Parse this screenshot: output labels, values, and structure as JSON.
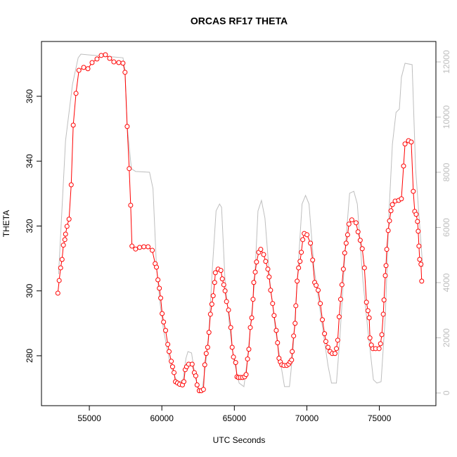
{
  "chart_data": {
    "type": "line",
    "title": "ORCAS RF17 THETA",
    "xlabel": "UTC Seconds",
    "ylabel": "THETA",
    "xlim": [
      51700,
      78900
    ],
    "xticks": [
      55000,
      60000,
      65000,
      70000,
      75000
    ],
    "ylim": [
      264.6,
      376.9
    ],
    "yticks": [
      280,
      300,
      320,
      340,
      360
    ],
    "y2lim": [
      -460,
      12740
    ],
    "y2ticks": [
      0,
      2000,
      4000,
      6000,
      8000,
      10000,
      12000
    ],
    "series": [
      {
        "color": "#bebebe",
        "axis": "y2",
        "markers": false,
        "x": [
          52880,
          53360,
          53840,
          54230,
          54420,
          55050,
          56250,
          57320,
          57460,
          57610,
          57900,
          58190,
          59150,
          59390,
          59630,
          59870,
          60120,
          60600,
          61080,
          61470,
          61660,
          61800,
          62050,
          62290,
          62530,
          62770,
          63010,
          63250,
          63490,
          63740,
          63980,
          64120,
          64360,
          64700,
          64940,
          65330,
          65660,
          65910,
          66400,
          66630,
          66870,
          67110,
          67450,
          67840,
          68220,
          68460,
          68800,
          69040,
          69280,
          69670,
          69910,
          70150,
          70490,
          70970,
          71460,
          71700,
          72040,
          72280,
          72660,
          72950,
          73240,
          73480,
          73870,
          74210,
          74590,
          74830,
          75120,
          75410,
          75670,
          75900,
          76150,
          76380,
          76520,
          76770,
          77260,
          77500,
          77990
        ],
        "values": [
          4310,
          9150,
          11190,
          12150,
          12280,
          12250,
          12200,
          12150,
          11700,
          9660,
          8130,
          8030,
          8000,
          7410,
          4560,
          3290,
          2270,
          990,
          360,
          480,
          1250,
          1500,
          1450,
          610,
          100,
          80,
          990,
          2270,
          4560,
          6600,
          6850,
          6730,
          4050,
          2270,
          1250,
          360,
          230,
          1250,
          4050,
          6600,
          6980,
          6340,
          4050,
          2270,
          990,
          230,
          230,
          1500,
          3540,
          6850,
          7160,
          6850,
          4560,
          2780,
          990,
          360,
          360,
          2010,
          5330,
          7240,
          7310,
          6850,
          4050,
          2270,
          480,
          360,
          410,
          2780,
          6600,
          9020,
          10170,
          10290,
          11440,
          11950,
          11900,
          8130,
          4560
        ]
      },
      {
        "color": "#ff0000",
        "markers": true,
        "x": [
          52830,
          52920,
          53020,
          53120,
          53210,
          53310,
          53360,
          53460,
          53600,
          53750,
          53890,
          54080,
          54280,
          54610,
          54900,
          55190,
          55530,
          55820,
          56110,
          56400,
          56690,
          57030,
          57320,
          57460,
          57610,
          57750,
          57850,
          57940,
          58190,
          58470,
          58760,
          59050,
          59340,
          59540,
          59630,
          59730,
          59830,
          59920,
          60020,
          60120,
          60260,
          60410,
          60500,
          60650,
          60740,
          60840,
          60940,
          61080,
          61230,
          61420,
          61520,
          61610,
          61710,
          61850,
          62090,
          62240,
          62340,
          62430,
          62580,
          62720,
          62870,
          62960,
          63060,
          63160,
          63250,
          63350,
          63450,
          63540,
          63640,
          63690,
          63880,
          64070,
          64170,
          64270,
          64360,
          64460,
          64600,
          64750,
          64850,
          64940,
          65090,
          65180,
          65280,
          65420,
          65570,
          65710,
          65810,
          65910,
          66000,
          66100,
          66200,
          66290,
          66340,
          66440,
          66530,
          66680,
          66820,
          67020,
          67160,
          67310,
          67400,
          67500,
          67640,
          67740,
          67890,
          67980,
          68080,
          68170,
          68270,
          68420,
          68610,
          68750,
          68850,
          68950,
          68990,
          69090,
          69190,
          69240,
          69330,
          69430,
          69530,
          69620,
          69720,
          69820,
          70010,
          70250,
          70400,
          70540,
          70640,
          70780,
          70930,
          71070,
          71220,
          71310,
          71460,
          71600,
          71750,
          71940,
          72040,
          72130,
          72230,
          72330,
          72420,
          72520,
          72610,
          72710,
          72810,
          72900,
          73100,
          73390,
          73530,
          73680,
          73820,
          73970,
          74110,
          74210,
          74300,
          74350,
          74450,
          74550,
          74740,
          74980,
          75080,
          75170,
          75270,
          75320,
          75410,
          75460,
          75510,
          75610,
          75700,
          75800,
          75900,
          76090,
          76330,
          76520,
          76670,
          76770,
          77010,
          77200,
          77340,
          77440,
          77540,
          77630,
          77680,
          77730,
          77780,
          77870,
          77920
        ],
        "values": [
          299.3,
          303.2,
          307.1,
          309.7,
          314.1,
          315.8,
          317.5,
          319.9,
          322.1,
          332.7,
          351.1,
          360.9,
          368.0,
          368.9,
          368.5,
          370.4,
          371.5,
          372.6,
          372.8,
          371.7,
          370.6,
          370.4,
          370.2,
          367.4,
          350.7,
          337.7,
          326.4,
          313.8,
          312.9,
          313.4,
          313.6,
          313.6,
          312.5,
          308.4,
          307.3,
          303.4,
          300.8,
          297.8,
          293.0,
          290.4,
          287.8,
          283.5,
          281.3,
          278.3,
          276.6,
          274.8,
          272.0,
          271.6,
          271.2,
          271.0,
          272.0,
          275.7,
          276.6,
          277.4,
          277.4,
          274.8,
          273.8,
          271.0,
          269.2,
          269.2,
          269.6,
          277.2,
          280.7,
          282.6,
          287.2,
          292.8,
          295.9,
          298.5,
          302.6,
          305.6,
          306.7,
          306.3,
          303.7,
          301.9,
          300.0,
          296.7,
          294.1,
          288.7,
          282.6,
          279.6,
          277.9,
          273.5,
          273.3,
          273.3,
          273.3,
          273.5,
          274.2,
          279.0,
          282.0,
          288.7,
          291.7,
          297.4,
          302.6,
          305.8,
          308.9,
          311.9,
          312.8,
          311.2,
          309.1,
          306.7,
          304.3,
          300.2,
          296.1,
          292.4,
          287.8,
          284.0,
          279.2,
          278.1,
          277.2,
          277.0,
          277.0,
          277.4,
          278.1,
          278.7,
          281.3,
          286.1,
          290.0,
          295.4,
          303.0,
          307.1,
          309.1,
          311.9,
          315.8,
          317.7,
          317.3,
          314.7,
          309.5,
          302.6,
          301.7,
          300.2,
          296.1,
          291.1,
          286.8,
          284.4,
          282.6,
          281.3,
          280.7,
          280.7,
          282.2,
          284.8,
          292.0,
          297.4,
          301.9,
          306.7,
          311.7,
          314.7,
          317.3,
          320.6,
          321.9,
          321.0,
          318.2,
          315.6,
          313.0,
          307.1,
          296.5,
          293.9,
          291.7,
          285.5,
          283.3,
          282.2,
          282.2,
          282.2,
          283.7,
          286.5,
          292.8,
          297.2,
          304.7,
          307.8,
          312.8,
          318.6,
          321.6,
          324.7,
          326.6,
          327.7,
          327.9,
          328.4,
          338.5,
          345.3,
          346.3,
          345.9,
          330.7,
          324.5,
          323.6,
          321.4,
          318.4,
          313.8,
          309.7,
          308.2,
          303.0
        ]
      }
    ]
  }
}
